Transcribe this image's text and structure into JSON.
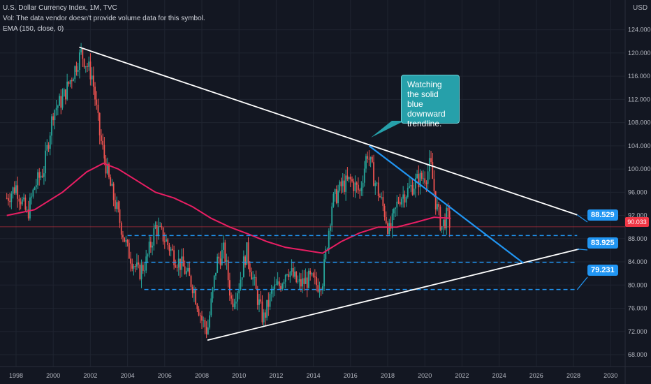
{
  "header": {
    "title": "U.S. Dollar Currency Index, 1M, TVC",
    "volume_note": "Vol: The data vendor doesn't provide volume data for this symbol.",
    "indicator": "EMA (150, close, 0)",
    "currency": "USD"
  },
  "callout": {
    "text": "Watching the solid blue downward trendline."
  },
  "current_price": "90.033",
  "colors": {
    "background": "#131722",
    "up": "#26a69a",
    "down": "#ef5350",
    "ema": "#e91e63",
    "blue": "#2196f3",
    "white": "#ffffff",
    "callout": "#26a0aa"
  },
  "chart_data": {
    "type": "line",
    "x_ticks": [
      "1998",
      "2000",
      "2002",
      "2004",
      "2006",
      "2008",
      "2010",
      "2012",
      "2014",
      "2016",
      "2018",
      "2020",
      "2022",
      "2024",
      "2026",
      "2028",
      "2030"
    ],
    "y_ticks": [
      "124.000",
      "120.000",
      "116.000",
      "112.000",
      "108.000",
      "104.000",
      "100.000",
      "96.000",
      "92.000",
      "88.000",
      "84.000",
      "80.000",
      "76.000",
      "72.000",
      "68.000"
    ],
    "ylim": [
      66.5,
      126
    ],
    "xlim": [
      1997.4,
      2030.2
    ],
    "price_path": [
      [
        1997.5,
        95
      ],
      [
        1998.0,
        97
      ],
      [
        1998.6,
        92
      ],
      [
        1999.0,
        97
      ],
      [
        1999.5,
        100
      ],
      [
        2000.0,
        110
      ],
      [
        2000.5,
        112
      ],
      [
        2001.0,
        116
      ],
      [
        2001.5,
        120
      ],
      [
        2001.8,
        118
      ],
      [
        2002.1,
        116
      ],
      [
        2002.5,
        106
      ],
      [
        2003.0,
        98
      ],
      [
        2003.5,
        92
      ],
      [
        2004.0,
        86
      ],
      [
        2004.6,
        82
      ],
      [
        2005.0,
        84
      ],
      [
        2005.5,
        90
      ],
      [
        2006.0,
        88
      ],
      [
        2006.5,
        85
      ],
      [
        2007.0,
        83
      ],
      [
        2007.5,
        80
      ],
      [
        2008.0,
        74
      ],
      [
        2008.3,
        72
      ],
      [
        2008.8,
        84
      ],
      [
        2009.2,
        86
      ],
      [
        2009.6,
        77
      ],
      [
        2010.0,
        80
      ],
      [
        2010.4,
        86
      ],
      [
        2010.9,
        79
      ],
      [
        2011.3,
        74
      ],
      [
        2011.8,
        79
      ],
      [
        2012.2,
        80
      ],
      [
        2012.6,
        83
      ],
      [
        2013.2,
        80
      ],
      [
        2013.8,
        81
      ],
      [
        2014.2,
        80
      ],
      [
        2014.5,
        81
      ],
      [
        2015.0,
        94
      ],
      [
        2015.5,
        97
      ],
      [
        2016.0,
        98
      ],
      [
        2016.5,
        96
      ],
      [
        2016.9,
        103
      ],
      [
        2017.3,
        98
      ],
      [
        2017.8,
        93
      ],
      [
        2018.1,
        89
      ],
      [
        2018.6,
        95
      ],
      [
        2019.0,
        96
      ],
      [
        2019.6,
        98
      ],
      [
        2020.1,
        99
      ],
      [
        2020.3,
        101
      ],
      [
        2020.6,
        94
      ],
      [
        2020.9,
        90
      ],
      [
        2021.2,
        92
      ],
      [
        2021.4,
        90
      ]
    ],
    "series": [
      {
        "values_path": [
          [
            1997.5,
            92
          ],
          [
            1999.0,
            93
          ],
          [
            2000.5,
            96
          ],
          [
            2001.8,
            99.5
          ],
          [
            2002.7,
            101
          ],
          [
            2003.5,
            100
          ],
          [
            2004.5,
            98
          ],
          [
            2005.5,
            96
          ],
          [
            2006.5,
            95
          ],
          [
            2007.5,
            93.5
          ],
          [
            2008.5,
            91.5
          ],
          [
            2009.5,
            90
          ],
          [
            2010.5,
            88.8
          ],
          [
            2011.5,
            87.5
          ],
          [
            2012.5,
            86.5
          ],
          [
            2013.5,
            86
          ],
          [
            2014.5,
            85.5
          ],
          [
            2015.5,
            87.5
          ],
          [
            2016.5,
            89
          ],
          [
            2017.5,
            90
          ],
          [
            2018.5,
            90
          ],
          [
            2019.5,
            90.8
          ],
          [
            2020.5,
            91.7
          ],
          [
            2021.4,
            91.5
          ]
        ]
      }
    ],
    "trendlines": [
      {
        "color": "white",
        "from": [
          2001.4,
          121
        ],
        "to": [
          2028.2,
          92.1
        ]
      },
      {
        "color": "white",
        "from": [
          2008.3,
          70.5
        ],
        "to": [
          2028.3,
          86.2
        ]
      },
      {
        "color": "blue",
        "from": [
          2017.0,
          104
        ],
        "to": [
          2025.3,
          83.8
        ]
      }
    ],
    "levels": [
      {
        "value": 88.529,
        "from": 2004.0,
        "to": 2028.2,
        "label": "88.529"
      },
      {
        "value": 83.925,
        "from": 2004.9,
        "to": 2028.2,
        "label": "83.925"
      },
      {
        "value": 79.231,
        "from": 2004.9,
        "to": 2028.2,
        "label": "79.231"
      }
    ],
    "price_line": 90.033
  }
}
